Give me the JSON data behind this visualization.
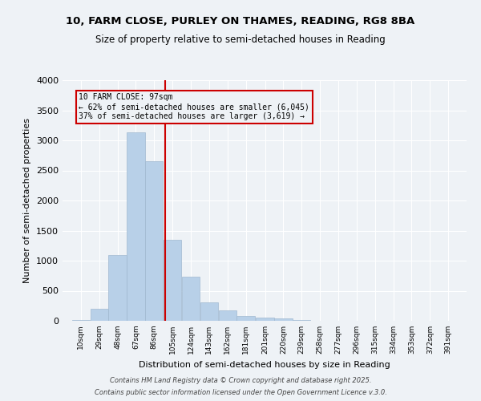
{
  "title1": "10, FARM CLOSE, PURLEY ON THAMES, READING, RG8 8BA",
  "title2": "Size of property relative to semi-detached houses in Reading",
  "xlabel": "Distribution of semi-detached houses by size in Reading",
  "ylabel": "Number of semi-detached properties",
  "bin_labels": [
    "10sqm",
    "29sqm",
    "48sqm",
    "67sqm",
    "86sqm",
    "105sqm",
    "124sqm",
    "143sqm",
    "162sqm",
    "181sqm",
    "201sqm",
    "220sqm",
    "239sqm",
    "258sqm",
    "277sqm",
    "296sqm",
    "315sqm",
    "334sqm",
    "353sqm",
    "372sqm",
    "391sqm"
  ],
  "bar_centers": [
    10,
    29,
    48,
    67,
    86,
    105,
    124,
    143,
    162,
    181,
    201,
    220,
    239,
    258,
    277,
    296,
    315,
    334,
    353,
    372,
    391
  ],
  "bar_heights": [
    20,
    200,
    1090,
    3140,
    2650,
    1350,
    730,
    310,
    170,
    80,
    55,
    40,
    10,
    5,
    3,
    2,
    1,
    1,
    0,
    0,
    0
  ],
  "bar_color": "#b8d0e8",
  "bar_edgecolor": "#a0b8d0",
  "vline_x": 97,
  "vline_color": "#cc0000",
  "annotation_text": "10 FARM CLOSE: 97sqm\n← 62% of semi-detached houses are smaller (6,045)\n37% of semi-detached houses are larger (3,619) →",
  "annotation_box_color": "#cc0000",
  "ylim": [
    0,
    4000
  ],
  "yticks": [
    0,
    500,
    1000,
    1500,
    2000,
    2500,
    3000,
    3500,
    4000
  ],
  "background_color": "#eef2f6",
  "plot_background": "#eef2f6",
  "grid_color": "#ffffff",
  "footer1": "Contains HM Land Registry data © Crown copyright and database right 2025.",
  "footer2": "Contains public sector information licensed under the Open Government Licence v.3.0."
}
